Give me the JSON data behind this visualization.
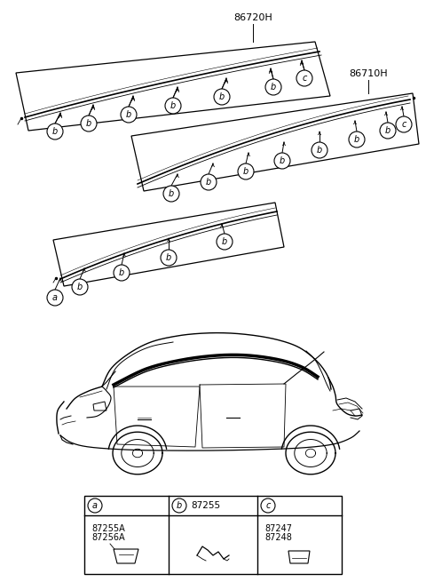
{
  "bg_color": "#ffffff",
  "label_86720H": "86720H",
  "label_86710H": "86710H",
  "part_b_code": "87255",
  "part_a_codes": "87255A\n87256A",
  "part_c_codes": "87247\n87248",
  "fig_width": 4.8,
  "fig_height": 6.55,
  "dpi": 100
}
